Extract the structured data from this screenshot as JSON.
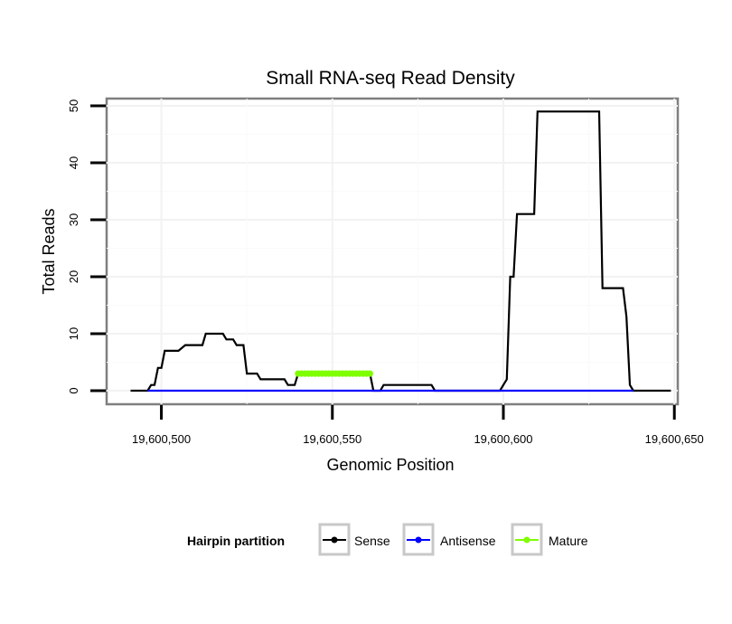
{
  "chart_data": {
    "type": "line",
    "title": "Small RNA-seq Read Density",
    "xlabel": "Genomic Position",
    "ylabel": "Total Reads",
    "xlim": [
      19600484,
      19600651
    ],
    "ylim": [
      -2,
      50
    ],
    "x_ticks": [
      19600500,
      19600550,
      19600600,
      19600650
    ],
    "x_tick_labels": [
      "19,600,500",
      "19,600,550",
      "19,600,600",
      "19,600,650"
    ],
    "y_ticks": [
      0,
      10,
      20,
      30,
      40,
      50
    ],
    "y_tick_labels": [
      "0",
      "10",
      "20",
      "30",
      "40",
      "50"
    ],
    "grid": true,
    "legend": {
      "title": "Hairpin partition",
      "position": "bottom",
      "entries": [
        "Sense",
        "Antisense",
        "Mature"
      ]
    },
    "series": [
      {
        "name": "Sense",
        "color": "#000000",
        "points": [
          [
            19600491,
            0
          ],
          [
            19600496,
            0
          ],
          [
            19600497,
            1
          ],
          [
            19600498,
            1
          ],
          [
            19600499,
            4
          ],
          [
            19600500,
            4
          ],
          [
            19600501,
            7
          ],
          [
            19600505,
            7
          ],
          [
            19600507,
            8
          ],
          [
            19600512,
            8
          ],
          [
            19600513,
            10
          ],
          [
            19600518,
            10
          ],
          [
            19600519,
            9
          ],
          [
            19600521,
            9
          ],
          [
            19600522,
            8
          ],
          [
            19600524,
            8
          ],
          [
            19600525,
            3
          ],
          [
            19600528,
            3
          ],
          [
            19600529,
            2
          ],
          [
            19600536,
            2
          ],
          [
            19600537,
            1
          ],
          [
            19600539,
            1
          ],
          [
            19600540,
            3
          ],
          [
            19600561,
            3
          ],
          [
            19600562,
            0
          ],
          [
            19600564,
            0
          ],
          [
            19600565,
            1
          ],
          [
            19600579,
            1
          ],
          [
            19600580,
            0
          ],
          [
            19600599,
            0
          ],
          [
            19600600,
            1
          ],
          [
            19600601,
            2
          ],
          [
            19600602,
            20
          ],
          [
            19600603,
            20
          ],
          [
            19600604,
            31
          ],
          [
            19600609,
            31
          ],
          [
            19600610,
            49
          ],
          [
            19600628,
            49
          ],
          [
            19600629,
            18
          ],
          [
            19600635,
            18
          ],
          [
            19600636,
            13
          ],
          [
            19600637,
            1
          ],
          [
            19600638,
            0
          ],
          [
            19600649,
            0
          ]
        ]
      },
      {
        "name": "Antisense",
        "color": "#0000ff",
        "points": [
          [
            19600496,
            0
          ],
          [
            19600638,
            0
          ]
        ]
      },
      {
        "name": "Mature",
        "color": "#7fff00",
        "x": [
          19600540,
          19600541,
          19600542,
          19600543,
          19600544,
          19600545,
          19600546,
          19600547,
          19600548,
          19600549,
          19600550,
          19600551,
          19600552,
          19600553,
          19600554,
          19600555,
          19600556,
          19600557,
          19600558,
          19600559,
          19600560,
          19600561
        ],
        "y": 3
      }
    ]
  }
}
